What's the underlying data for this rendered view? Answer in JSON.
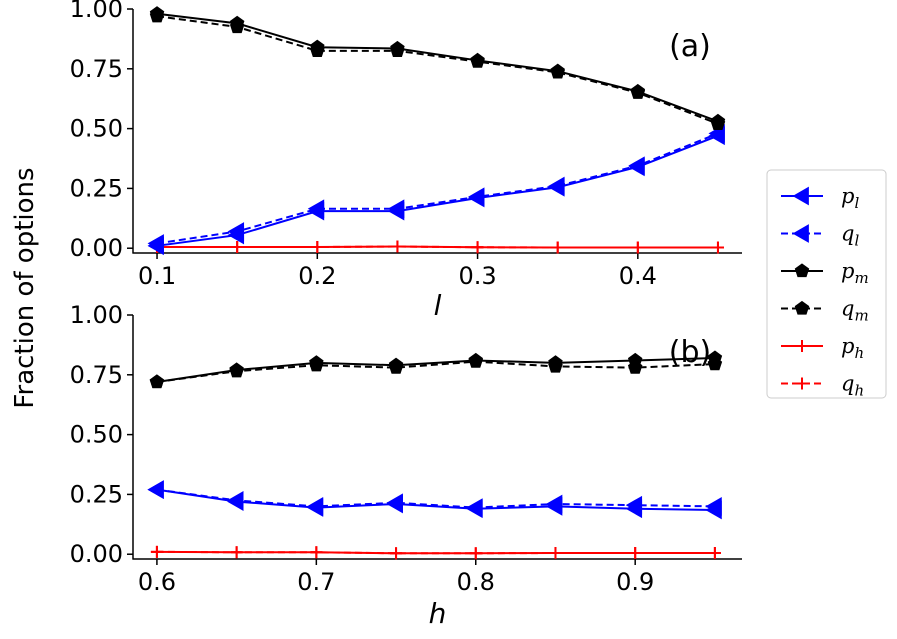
{
  "figure": {
    "ylabel": "Fraction of options"
  },
  "legend": {
    "entries": [
      {
        "base": "p",
        "sub": "l",
        "color": "#0000ff",
        "dashed": false,
        "marker": "triangle-left"
      },
      {
        "base": "q",
        "sub": "l",
        "color": "#0000ff",
        "dashed": true,
        "marker": "triangle-left"
      },
      {
        "base": "p",
        "sub": "m",
        "color": "#000000",
        "dashed": false,
        "marker": "pentagon"
      },
      {
        "base": "q",
        "sub": "m",
        "color": "#000000",
        "dashed": true,
        "marker": "pentagon"
      },
      {
        "base": "p",
        "sub": "h",
        "color": "#ff0000",
        "dashed": false,
        "marker": "plus"
      },
      {
        "base": "q",
        "sub": "h",
        "color": "#ff0000",
        "dashed": true,
        "marker": "plus"
      }
    ]
  },
  "chart_data": [
    {
      "type": "line",
      "panel_label": "(a)",
      "xlabel": "l",
      "ylabel": "Fraction of options",
      "x": [
        0.1,
        0.15,
        0.2,
        0.25,
        0.3,
        0.35,
        0.4,
        0.45
      ],
      "xlim": [
        0.085,
        0.465
      ],
      "ylim": [
        -0.02,
        1.0
      ],
      "xticks": [
        0.1,
        0.2,
        0.3,
        0.4
      ],
      "xtick_labels": [
        "0.1",
        "0.2",
        "0.3",
        "0.4"
      ],
      "yticks": [
        0.0,
        0.25,
        0.5,
        0.75,
        1.0
      ],
      "ytick_labels": [
        "0.00",
        "0.25",
        "0.50",
        "0.75",
        "1.00"
      ],
      "series": [
        {
          "name": "p_l",
          "color": "#0000ff",
          "dashed": false,
          "marker": "triangle-left",
          "values": [
            0.01,
            0.055,
            0.155,
            0.155,
            0.21,
            0.255,
            0.34,
            0.47
          ]
        },
        {
          "name": "q_l",
          "color": "#0000ff",
          "dashed": true,
          "marker": "triangle-left",
          "values": [
            0.02,
            0.07,
            0.165,
            0.165,
            0.215,
            0.26,
            0.345,
            0.48
          ]
        },
        {
          "name": "p_m",
          "color": "#000000",
          "dashed": false,
          "marker": "pentagon",
          "values": [
            0.98,
            0.94,
            0.84,
            0.835,
            0.785,
            0.74,
            0.655,
            0.53
          ]
        },
        {
          "name": "q_m",
          "color": "#000000",
          "dashed": true,
          "marker": "pentagon",
          "values": [
            0.97,
            0.925,
            0.825,
            0.825,
            0.78,
            0.735,
            0.65,
            0.52
          ]
        },
        {
          "name": "p_h",
          "color": "#ff0000",
          "dashed": false,
          "marker": "plus",
          "values": [
            0.005,
            0.005,
            0.005,
            0.007,
            0.004,
            0.003,
            0.003,
            0.003
          ]
        },
        {
          "name": "q_h",
          "color": "#ff0000",
          "dashed": true,
          "marker": "plus",
          "values": [
            0.005,
            0.005,
            0.005,
            0.007,
            0.004,
            0.003,
            0.003,
            0.003
          ]
        }
      ]
    },
    {
      "type": "line",
      "panel_label": "(b)",
      "xlabel": "h",
      "ylabel": "Fraction of options",
      "x": [
        0.6,
        0.65,
        0.7,
        0.75,
        0.8,
        0.85,
        0.9,
        0.95
      ],
      "xlim": [
        0.585,
        0.967
      ],
      "ylim": [
        -0.02,
        1.0
      ],
      "xticks": [
        0.6,
        0.7,
        0.8,
        0.9
      ],
      "xtick_labels": [
        "0.6",
        "0.7",
        "0.8",
        "0.9"
      ],
      "yticks": [
        0.0,
        0.25,
        0.5,
        0.75,
        1.0
      ],
      "ytick_labels": [
        "0.00",
        "0.25",
        "0.50",
        "0.75",
        "1.00"
      ],
      "series": [
        {
          "name": "p_l",
          "color": "#0000ff",
          "dashed": false,
          "marker": "triangle-left",
          "values": [
            0.27,
            0.22,
            0.195,
            0.21,
            0.19,
            0.2,
            0.19,
            0.185
          ]
        },
        {
          "name": "q_l",
          "color": "#0000ff",
          "dashed": true,
          "marker": "triangle-left",
          "values": [
            0.27,
            0.225,
            0.2,
            0.215,
            0.195,
            0.21,
            0.205,
            0.2
          ]
        },
        {
          "name": "p_m",
          "color": "#000000",
          "dashed": false,
          "marker": "pentagon",
          "values": [
            0.72,
            0.77,
            0.8,
            0.79,
            0.81,
            0.8,
            0.81,
            0.82
          ]
        },
        {
          "name": "q_m",
          "color": "#000000",
          "dashed": true,
          "marker": "pentagon",
          "values": [
            0.72,
            0.765,
            0.79,
            0.78,
            0.805,
            0.785,
            0.78,
            0.795
          ]
        },
        {
          "name": "p_h",
          "color": "#ff0000",
          "dashed": false,
          "marker": "plus",
          "values": [
            0.01,
            0.008,
            0.008,
            0.004,
            0.004,
            0.005,
            0.005,
            0.005
          ]
        },
        {
          "name": "q_h",
          "color": "#ff0000",
          "dashed": true,
          "marker": "plus",
          "values": [
            0.01,
            0.008,
            0.008,
            0.004,
            0.004,
            0.005,
            0.005,
            0.005
          ]
        }
      ]
    }
  ]
}
